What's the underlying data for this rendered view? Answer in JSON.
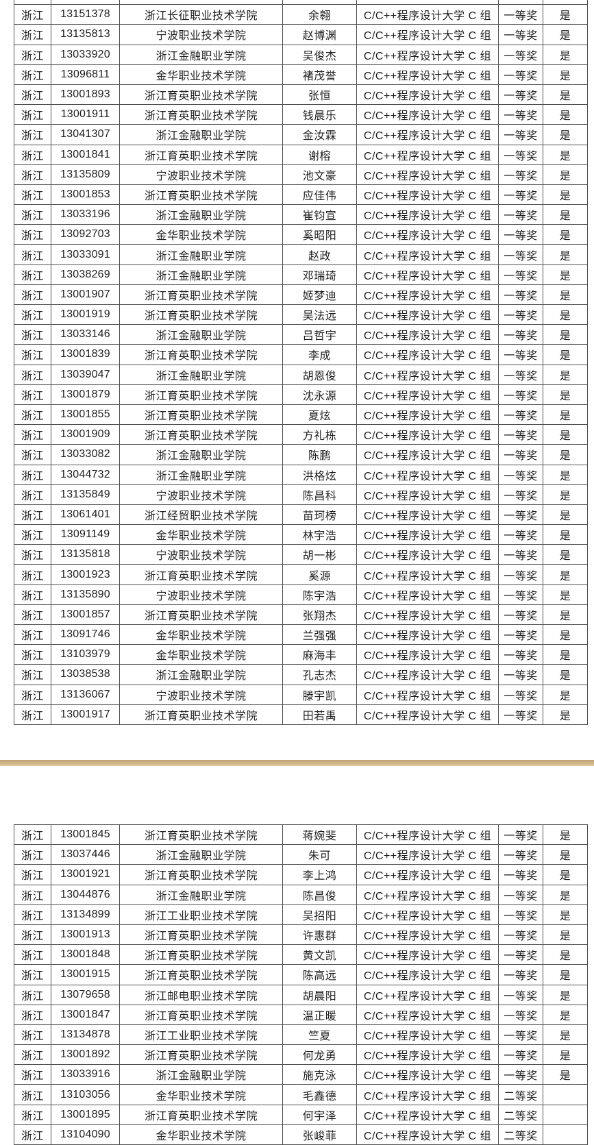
{
  "page": {
    "background": "#ffffff",
    "text_color": "#1e1e1e",
    "grid_color": "#4f4f4f"
  },
  "divider": {
    "top_color": "#bfa172",
    "body_color": "#dcc89b"
  },
  "chart_data": {
    "type": "table",
    "note_visible_columns": [
      "province",
      "id",
      "school",
      "name",
      "event",
      "award",
      "confirmed"
    ],
    "pages": 2
  },
  "table1": {
    "rows": [
      [
        "浙江",
        "13151378",
        "浙江长征职业技术学院",
        "余翱",
        "C/C++程序设计大学 C 组",
        "一等奖",
        "是"
      ],
      [
        "浙江",
        "13135813",
        "宁波职业技术学院",
        "赵博渊",
        "C/C++程序设计大学 C 组",
        "一等奖",
        "是"
      ],
      [
        "浙江",
        "13033920",
        "浙江金融职业学院",
        "吴俊杰",
        "C/C++程序设计大学 C 组",
        "一等奖",
        "是"
      ],
      [
        "浙江",
        "13096811",
        "金华职业技术学院",
        "褚茂誉",
        "C/C++程序设计大学 C 组",
        "一等奖",
        "是"
      ],
      [
        "浙江",
        "13001893",
        "浙江育英职业技术学院",
        "张恒",
        "C/C++程序设计大学 C 组",
        "一等奖",
        "是"
      ],
      [
        "浙江",
        "13001911",
        "浙江育英职业技术学院",
        "钱晨乐",
        "C/C++程序设计大学 C 组",
        "一等奖",
        "是"
      ],
      [
        "浙江",
        "13041307",
        "浙江金融职业学院",
        "金汝霖",
        "C/C++程序设计大学 C 组",
        "一等奖",
        "是"
      ],
      [
        "浙江",
        "13001841",
        "浙江育英职业技术学院",
        "谢榕",
        "C/C++程序设计大学 C 组",
        "一等奖",
        "是"
      ],
      [
        "浙江",
        "13135809",
        "宁波职业技术学院",
        "池文豪",
        "C/C++程序设计大学 C 组",
        "一等奖",
        "是"
      ],
      [
        "浙江",
        "13001853",
        "浙江育英职业技术学院",
        "应佳伟",
        "C/C++程序设计大学 C 组",
        "一等奖",
        "是"
      ],
      [
        "浙江",
        "13033196",
        "浙江金融职业学院",
        "崔钧宣",
        "C/C++程序设计大学 C 组",
        "一等奖",
        "是"
      ],
      [
        "浙江",
        "13092703",
        "金华职业技术学院",
        "奚昭阳",
        "C/C++程序设计大学 C 组",
        "一等奖",
        "是"
      ],
      [
        "浙江",
        "13033091",
        "浙江金融职业学院",
        "赵政",
        "C/C++程序设计大学 C 组",
        "一等奖",
        "是"
      ],
      [
        "浙江",
        "13038269",
        "浙江金融职业学院",
        "邓瑞琦",
        "C/C++程序设计大学 C 组",
        "一等奖",
        "是"
      ],
      [
        "浙江",
        "13001907",
        "浙江育英职业技术学院",
        "姬梦迪",
        "C/C++程序设计大学 C 组",
        "一等奖",
        "是"
      ],
      [
        "浙江",
        "13001919",
        "浙江育英职业技术学院",
        "吴法远",
        "C/C++程序设计大学 C 组",
        "一等奖",
        "是"
      ],
      [
        "浙江",
        "13033146",
        "浙江金融职业学院",
        "吕哲宇",
        "C/C++程序设计大学 C 组",
        "一等奖",
        "是"
      ],
      [
        "浙江",
        "13001839",
        "浙江育英职业技术学院",
        "李成",
        "C/C++程序设计大学 C 组",
        "一等奖",
        "是"
      ],
      [
        "浙江",
        "13039047",
        "浙江金融职业学院",
        "胡恩俊",
        "C/C++程序设计大学 C 组",
        "一等奖",
        "是"
      ],
      [
        "浙江",
        "13001879",
        "浙江育英职业技术学院",
        "沈永源",
        "C/C++程序设计大学 C 组",
        "一等奖",
        "是"
      ],
      [
        "浙江",
        "13001855",
        "浙江育英职业技术学院",
        "夏炫",
        "C/C++程序设计大学 C 组",
        "一等奖",
        "是"
      ],
      [
        "浙江",
        "13001909",
        "浙江育英职业技术学院",
        "方礼栋",
        "C/C++程序设计大学 C 组",
        "一等奖",
        "是"
      ],
      [
        "浙江",
        "13033082",
        "浙江金融职业学院",
        "陈鹏",
        "C/C++程序设计大学 C 组",
        "一等奖",
        "是"
      ],
      [
        "浙江",
        "13044732",
        "浙江金融职业学院",
        "洪格炫",
        "C/C++程序设计大学 C 组",
        "一等奖",
        "是"
      ],
      [
        "浙江",
        "13135849",
        "宁波职业技术学院",
        "陈昌科",
        "C/C++程序设计大学 C 组",
        "一等奖",
        "是"
      ],
      [
        "浙江",
        "13061401",
        "浙江经贸职业技术学院",
        "苗珂榜",
        "C/C++程序设计大学 C 组",
        "一等奖",
        "是"
      ],
      [
        "浙江",
        "13091149",
        "金华职业技术学院",
        "林宇浩",
        "C/C++程序设计大学 C 组",
        "一等奖",
        "是"
      ],
      [
        "浙江",
        "13135818",
        "宁波职业技术学院",
        "胡一彬",
        "C/C++程序设计大学 C 组",
        "一等奖",
        "是"
      ],
      [
        "浙江",
        "13001923",
        "浙江育英职业技术学院",
        "奚源",
        "C/C++程序设计大学 C 组",
        "一等奖",
        "是"
      ],
      [
        "浙江",
        "13135890",
        "宁波职业技术学院",
        "陈宇浩",
        "C/C++程序设计大学 C 组",
        "一等奖",
        "是"
      ],
      [
        "浙江",
        "13001857",
        "浙江育英职业技术学院",
        "张翔杰",
        "C/C++程序设计大学 C 组",
        "一等奖",
        "是"
      ],
      [
        "浙江",
        "13091746",
        "金华职业技术学院",
        "兰强强",
        "C/C++程序设计大学 C 组",
        "一等奖",
        "是"
      ],
      [
        "浙江",
        "13103979",
        "金华职业技术学院",
        "麻海丰",
        "C/C++程序设计大学 C 组",
        "一等奖",
        "是"
      ],
      [
        "浙江",
        "13038538",
        "浙江金融职业学院",
        "孔志杰",
        "C/C++程序设计大学 C 组",
        "一等奖",
        "是"
      ],
      [
        "浙江",
        "13136067",
        "宁波职业技术学院",
        "滕宇凯",
        "C/C++程序设计大学 C 组",
        "一等奖",
        "是"
      ],
      [
        "浙江",
        "13001917",
        "浙江育英职业技术学院",
        "田若禹",
        "C/C++程序设计大学 C 组",
        "一等奖",
        "是"
      ]
    ]
  },
  "table2": {
    "rows": [
      [
        "浙江",
        "13001845",
        "浙江育英职业技术学院",
        "蒋婉斐",
        "C/C++程序设计大学 C 组",
        "一等奖",
        "是"
      ],
      [
        "浙江",
        "13037446",
        "浙江金融职业学院",
        "朱可",
        "C/C++程序设计大学 C 组",
        "一等奖",
        "是"
      ],
      [
        "浙江",
        "13001921",
        "浙江育英职业技术学院",
        "李上鸿",
        "C/C++程序设计大学 C 组",
        "一等奖",
        "是"
      ],
      [
        "浙江",
        "13044876",
        "浙江金融职业学院",
        "陈昌俊",
        "C/C++程序设计大学 C 组",
        "一等奖",
        "是"
      ],
      [
        "浙江",
        "13134899",
        "浙江工业职业技术学院",
        "吴招阳",
        "C/C++程序设计大学 C 组",
        "一等奖",
        "是"
      ],
      [
        "浙江",
        "13001913",
        "浙江育英职业技术学院",
        "许惠群",
        "C/C++程序设计大学 C 组",
        "一等奖",
        "是"
      ],
      [
        "浙江",
        "13001848",
        "浙江育英职业技术学院",
        "黄文凯",
        "C/C++程序设计大学 C 组",
        "一等奖",
        "是"
      ],
      [
        "浙江",
        "13001915",
        "浙江育英职业技术学院",
        "陈高远",
        "C/C++程序设计大学 C 组",
        "一等奖",
        "是"
      ],
      [
        "浙江",
        "13079658",
        "浙江邮电职业技术学院",
        "胡晨阳",
        "C/C++程序设计大学 C 组",
        "一等奖",
        "是"
      ],
      [
        "浙江",
        "13001847",
        "浙江育英职业技术学院",
        "温正暖",
        "C/C++程序设计大学 C 组",
        "一等奖",
        "是"
      ],
      [
        "浙江",
        "13134878",
        "浙江工业职业技术学院",
        "竺夏",
        "C/C++程序设计大学 C 组",
        "一等奖",
        "是"
      ],
      [
        "浙江",
        "13001892",
        "浙江育英职业技术学院",
        "何龙勇",
        "C/C++程序设计大学 C 组",
        "一等奖",
        "是"
      ],
      [
        "浙江",
        "13033916",
        "浙江金融职业学院",
        "施克泳",
        "C/C++程序设计大学 C 组",
        "一等奖",
        "是"
      ],
      [
        "浙江",
        "13103056",
        "金华职业技术学院",
        "毛鑫德",
        "C/C++程序设计大学 C 组",
        "二等奖",
        ""
      ],
      [
        "浙江",
        "13001895",
        "浙江育英职业技术学院",
        "何宇泽",
        "C/C++程序设计大学 C 组",
        "二等奖",
        ""
      ],
      [
        "浙江",
        "13104090",
        "金华职业技术学院",
        "张峻菲",
        "C/C++程序设计大学 C 组",
        "二等奖",
        ""
      ]
    ]
  }
}
